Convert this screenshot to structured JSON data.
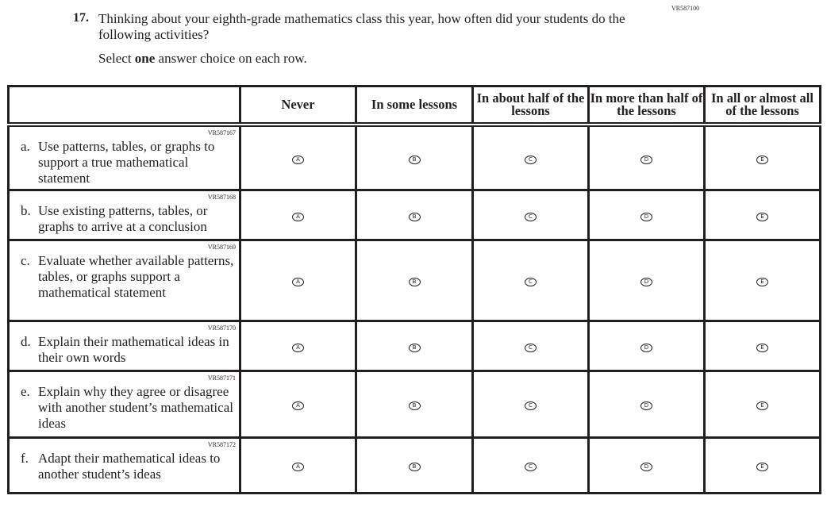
{
  "question": {
    "id": "VR587100",
    "number": "17.",
    "text": "Thinking about your eighth-grade mathematics class this year, how often did your students do the following activities?",
    "instruction_pre": "Select ",
    "instruction_bold": "one",
    "instruction_post": " answer choice on each row."
  },
  "columns": [
    "Never",
    "In some lessons",
    "In about half of the lessons",
    "In more than half of the lessons",
    "In all or almost all of the lessons"
  ],
  "choices": [
    "A",
    "B",
    "C",
    "D",
    "E"
  ],
  "rows": [
    {
      "id": "VR587167",
      "letter": "a.",
      "text": "Use patterns, tables, or graphs to support a true mathematical statement"
    },
    {
      "id": "VR587168",
      "letter": "b.",
      "text": "Use existing patterns, tables, or graphs to arrive at a conclusion"
    },
    {
      "id": "VR587169",
      "letter": "c.",
      "text": "Evaluate whether available patterns, tables, or graphs support a mathematical statement"
    },
    {
      "id": "VR587170",
      "letter": "d.",
      "text": "Explain their mathematical ideas in their own words"
    },
    {
      "id": "VR587171",
      "letter": "e.",
      "text": "Explain why they agree or disagree with another student’s mathematical ideas"
    },
    {
      "id": "VR587172",
      "letter": "f.",
      "text": "Adapt their mathematical ideas to another student’s ideas"
    }
  ]
}
